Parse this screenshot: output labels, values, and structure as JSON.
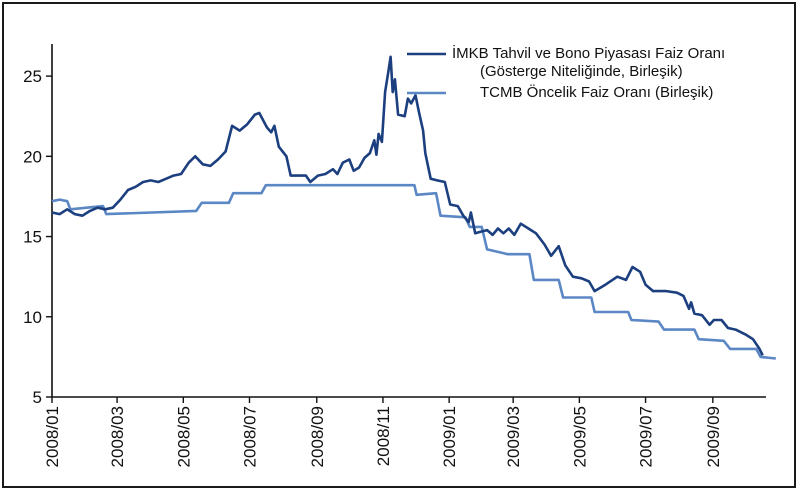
{
  "chart_data": {
    "type": "line",
    "title": "",
    "xlabel": "",
    "ylabel": "",
    "ylim": [
      5,
      27
    ],
    "yticks": [
      5,
      10,
      15,
      20,
      25
    ],
    "xlim": [
      "2008-01",
      "2009-11"
    ],
    "xtick_labels": [
      "2008/01",
      "2008/03",
      "2008/05",
      "2008/07",
      "2008/09",
      "2008/11",
      "2009/01",
      "2009/03",
      "2009/05",
      "2009/07",
      "2009/09"
    ],
    "grid": false,
    "legend_position": "top-right",
    "series": [
      {
        "name": "İMKB Tahvil ve Bono Piyasası Faiz Oranı",
        "name_line2": "(Gösterge Niteliğinde, Birleşik)",
        "color": "#1c3f7f",
        "points": [
          [
            "2008-01-01",
            16.5
          ],
          [
            "2008-01-08",
            16.4
          ],
          [
            "2008-01-15",
            16.7
          ],
          [
            "2008-01-22",
            16.4
          ],
          [
            "2008-01-29",
            16.3
          ],
          [
            "2008-02-05",
            16.6
          ],
          [
            "2008-02-12",
            16.8
          ],
          [
            "2008-02-19",
            16.7
          ],
          [
            "2008-02-26",
            16.8
          ],
          [
            "2008-03-04",
            17.3
          ],
          [
            "2008-03-11",
            17.9
          ],
          [
            "2008-03-18",
            18.1
          ],
          [
            "2008-03-25",
            18.4
          ],
          [
            "2008-04-01",
            18.5
          ],
          [
            "2008-04-08",
            18.4
          ],
          [
            "2008-04-15",
            18.6
          ],
          [
            "2008-04-22",
            18.8
          ],
          [
            "2008-04-29",
            18.9
          ],
          [
            "2008-05-06",
            19.6
          ],
          [
            "2008-05-12",
            20.0
          ],
          [
            "2008-05-19",
            19.5
          ],
          [
            "2008-05-26",
            19.4
          ],
          [
            "2008-06-02",
            19.8
          ],
          [
            "2008-06-09",
            20.3
          ],
          [
            "2008-06-15",
            21.9
          ],
          [
            "2008-06-22",
            21.6
          ],
          [
            "2008-06-29",
            22.0
          ],
          [
            "2008-07-06",
            22.6
          ],
          [
            "2008-07-10",
            22.7
          ],
          [
            "2008-07-17",
            21.8
          ],
          [
            "2008-07-21",
            21.5
          ],
          [
            "2008-07-24",
            21.9
          ],
          [
            "2008-07-28",
            20.6
          ],
          [
            "2008-08-04",
            20.0
          ],
          [
            "2008-08-08",
            18.8
          ],
          [
            "2008-08-15",
            18.8
          ],
          [
            "2008-08-22",
            18.8
          ],
          [
            "2008-08-26",
            18.4
          ],
          [
            "2008-09-02",
            18.8
          ],
          [
            "2008-09-09",
            18.9
          ],
          [
            "2008-09-16",
            19.2
          ],
          [
            "2008-09-20",
            18.9
          ],
          [
            "2008-09-25",
            19.6
          ],
          [
            "2008-10-01",
            19.8
          ],
          [
            "2008-10-05",
            19.1
          ],
          [
            "2008-10-10",
            19.3
          ],
          [
            "2008-10-15",
            19.9
          ],
          [
            "2008-10-20",
            20.2
          ],
          [
            "2008-10-24",
            21.0
          ],
          [
            "2008-10-26",
            20.1
          ],
          [
            "2008-10-28",
            21.4
          ],
          [
            "2008-10-31",
            20.9
          ],
          [
            "2008-11-03",
            24.0
          ],
          [
            "2008-11-06",
            25.3
          ],
          [
            "2008-11-08",
            26.2
          ],
          [
            "2008-11-10",
            24.0
          ],
          [
            "2008-11-12",
            24.8
          ],
          [
            "2008-11-15",
            22.6
          ],
          [
            "2008-11-21",
            22.5
          ],
          [
            "2008-11-24",
            23.6
          ],
          [
            "2008-11-27",
            23.3
          ],
          [
            "2008-12-01",
            23.8
          ],
          [
            "2008-12-04",
            22.8
          ],
          [
            "2008-12-08",
            21.6
          ],
          [
            "2008-12-10",
            20.2
          ],
          [
            "2008-12-15",
            18.6
          ],
          [
            "2008-12-21",
            18.5
          ],
          [
            "2008-12-28",
            18.4
          ],
          [
            "2009-01-02",
            17.0
          ],
          [
            "2009-01-09",
            16.9
          ],
          [
            "2009-01-14",
            16.3
          ],
          [
            "2009-01-19",
            15.9
          ],
          [
            "2009-01-21",
            16.5
          ],
          [
            "2009-01-25",
            15.2
          ],
          [
            "2009-01-30",
            15.3
          ],
          [
            "2009-02-05",
            15.4
          ],
          [
            "2009-02-10",
            15.1
          ],
          [
            "2009-02-15",
            15.5
          ],
          [
            "2009-02-20",
            15.2
          ],
          [
            "2009-02-25",
            15.5
          ],
          [
            "2009-03-02",
            15.1
          ],
          [
            "2009-03-08",
            15.8
          ],
          [
            "2009-03-15",
            15.5
          ],
          [
            "2009-03-22",
            15.2
          ],
          [
            "2009-03-30",
            14.5
          ],
          [
            "2009-04-05",
            13.8
          ],
          [
            "2009-04-12",
            14.4
          ],
          [
            "2009-04-18",
            13.2
          ],
          [
            "2009-04-25",
            12.5
          ],
          [
            "2009-05-03",
            12.4
          ],
          [
            "2009-05-10",
            12.2
          ],
          [
            "2009-05-15",
            11.6
          ],
          [
            "2009-05-25",
            12.0
          ],
          [
            "2009-06-05",
            12.5
          ],
          [
            "2009-06-13",
            12.3
          ],
          [
            "2009-06-19",
            13.1
          ],
          [
            "2009-06-26",
            12.8
          ],
          [
            "2009-07-01",
            12.0
          ],
          [
            "2009-07-08",
            11.6
          ],
          [
            "2009-07-20",
            11.6
          ],
          [
            "2009-07-30",
            11.5
          ],
          [
            "2009-08-05",
            11.3
          ],
          [
            "2009-08-10",
            10.5
          ],
          [
            "2009-08-12",
            10.9
          ],
          [
            "2009-08-15",
            10.2
          ],
          [
            "2009-08-22",
            10.1
          ],
          [
            "2009-08-29",
            9.5
          ],
          [
            "2009-09-02",
            9.8
          ],
          [
            "2009-09-09",
            9.8
          ],
          [
            "2009-09-15",
            9.3
          ],
          [
            "2009-09-22",
            9.2
          ],
          [
            "2009-10-01",
            8.9
          ],
          [
            "2009-10-08",
            8.6
          ],
          [
            "2009-10-14",
            8.0
          ],
          [
            "2009-10-17",
            7.6
          ]
        ]
      },
      {
        "name": "TCMB Öncelik Faiz Oranı (Birleşik)",
        "color": "#5b87c5",
        "points": [
          [
            "2008-01-01",
            17.2
          ],
          [
            "2008-01-08",
            17.3
          ],
          [
            "2008-01-15",
            17.2
          ],
          [
            "2008-01-18",
            16.7
          ],
          [
            "2008-02-17",
            16.9
          ],
          [
            "2008-02-20",
            16.4
          ],
          [
            "2008-05-13",
            16.6
          ],
          [
            "2008-05-18",
            17.1
          ],
          [
            "2008-06-12",
            17.1
          ],
          [
            "2008-06-16",
            17.7
          ],
          [
            "2008-07-12",
            17.7
          ],
          [
            "2008-07-16",
            18.2
          ],
          [
            "2008-11-30",
            18.2
          ],
          [
            "2008-12-02",
            17.6
          ],
          [
            "2008-12-20",
            17.7
          ],
          [
            "2008-12-24",
            16.3
          ],
          [
            "2009-01-16",
            16.2
          ],
          [
            "2009-01-20",
            15.6
          ],
          [
            "2009-01-31",
            15.6
          ],
          [
            "2009-02-05",
            14.2
          ],
          [
            "2009-02-18",
            14.0
          ],
          [
            "2009-02-24",
            13.9
          ],
          [
            "2009-03-16",
            13.9
          ],
          [
            "2009-03-20",
            12.3
          ],
          [
            "2009-04-12",
            12.3
          ],
          [
            "2009-04-16",
            11.2
          ],
          [
            "2009-05-12",
            11.2
          ],
          [
            "2009-05-15",
            10.3
          ],
          [
            "2009-06-15",
            10.3
          ],
          [
            "2009-06-18",
            9.8
          ],
          [
            "2009-07-13",
            9.7
          ],
          [
            "2009-07-18",
            9.2
          ],
          [
            "2009-08-15",
            9.2
          ],
          [
            "2009-08-19",
            8.6
          ],
          [
            "2009-09-11",
            8.5
          ],
          [
            "2009-09-17",
            8.0
          ],
          [
            "2009-10-11",
            8.0
          ],
          [
            "2009-10-15",
            7.5
          ],
          [
            "2009-10-29",
            7.4
          ]
        ]
      }
    ]
  }
}
